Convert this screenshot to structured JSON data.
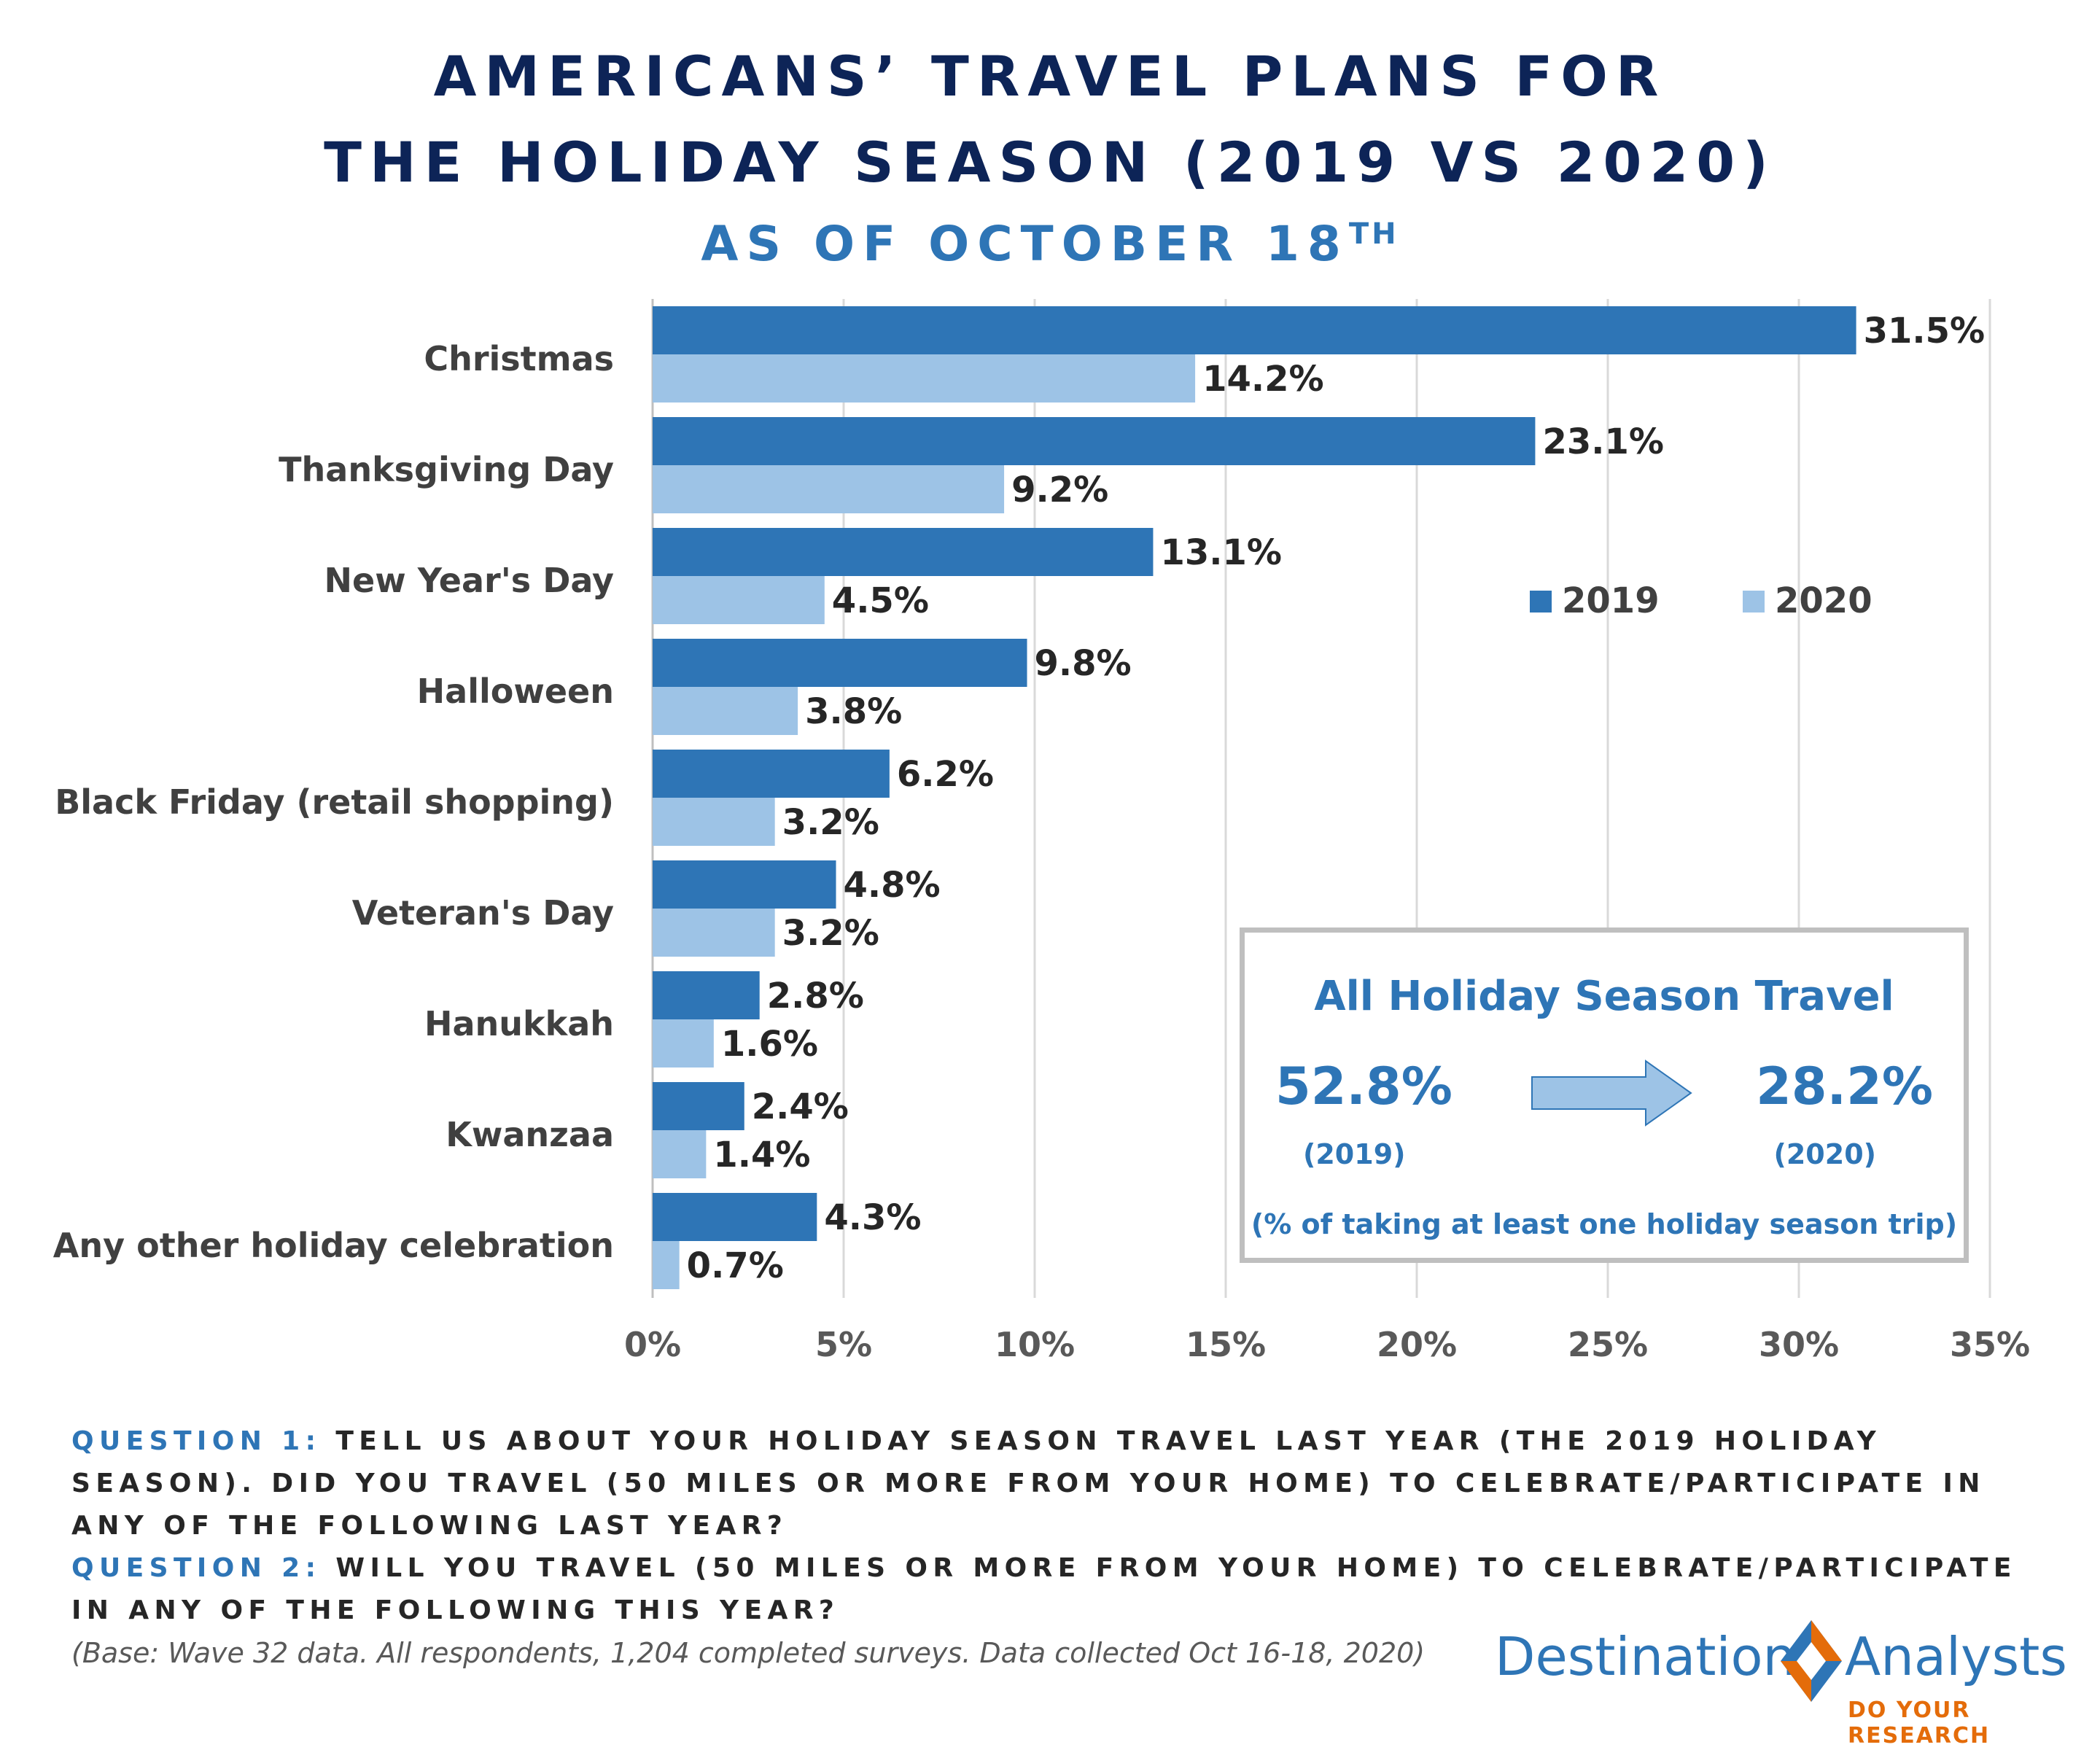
{
  "header": {
    "title_line1": "AMERICANS’ TRAVEL PLANS FOR",
    "title_line2": "THE HOLIDAY SEASON (2019 VS 2020)",
    "subtitle": "AS OF OCTOBER 18",
    "subtitle_sup": "TH"
  },
  "chart_data": {
    "type": "bar",
    "orientation": "horizontal",
    "categories": [
      "Christmas",
      "Thanksgiving Day",
      "New Year's Day",
      "Halloween",
      "Black Friday (retail shopping)",
      "Veteran's Day",
      "Hanukkah",
      "Kwanzaa",
      "Any other holiday celebration"
    ],
    "series": [
      {
        "name": "2019",
        "values": [
          31.5,
          23.1,
          13.1,
          9.8,
          6.2,
          4.8,
          2.8,
          2.4,
          4.3
        ],
        "labels": [
          "31.5%",
          "23.1%",
          "13.1%",
          "9.8%",
          "6.2%",
          "4.8%",
          "2.8%",
          "2.4%",
          "4.3%"
        ]
      },
      {
        "name": "2020",
        "values": [
          14.2,
          9.2,
          4.5,
          3.8,
          3.2,
          3.2,
          1.6,
          1.4,
          0.7
        ],
        "labels": [
          "14.2%",
          "9.2%",
          "4.5%",
          "3.8%",
          "3.2%",
          "3.2%",
          "1.6%",
          "1.4%",
          "0.7%"
        ]
      }
    ],
    "xlim": [
      0,
      35
    ],
    "xticks": [
      0,
      5,
      10,
      15,
      20,
      25,
      30,
      35
    ],
    "xtick_labels": [
      "0%",
      "5%",
      "10%",
      "15%",
      "20%",
      "25%",
      "30%",
      "35%"
    ],
    "grid": "vertical",
    "legend": "right-middle",
    "colors": {
      "2019": "#2e75b6",
      "2020": "#9dc3e6"
    }
  },
  "summary": {
    "title": "All Holiday Season Travel",
    "value_2019": "52.8%",
    "year_2019": "(2019)",
    "value_2020": "28.2%",
    "year_2020": "(2020)",
    "note": "(% of taking at least one holiday season trip)",
    "arrow_icon": "right-arrow-icon"
  },
  "footer": {
    "q1_head": "QUESTION 1:",
    "q1_text": " TELL US ABOUT YOUR HOLIDAY SEASON TRAVEL LAST YEAR (THE 2019 HOLIDAY SEASON). DID YOU TRAVEL (50 MILES OR MORE FROM YOUR HOME) TO CELEBRATE/PARTICIPATE IN ANY OF THE FOLLOWING LAST YEAR?",
    "q2_head": "QUESTION 2:",
    "q2_text": " WILL YOU TRAVEL (50 MILES OR MORE FROM YOUR HOME) TO CELEBRATE/PARTICIPATE IN ANY OF THE FOLLOWING THIS YEAR?",
    "base": "(Base: Wave 32 data. All respondents, 1,204 completed surveys. Data collected Oct 16-18, 2020)"
  },
  "logo": {
    "left": "Destination",
    "right": "Analysts",
    "tagline": "DO YOUR RESEARCH",
    "icon": "diamond-logo-icon",
    "colors": {
      "blue": "#2e75b6",
      "orange": "#e46c0a"
    }
  }
}
